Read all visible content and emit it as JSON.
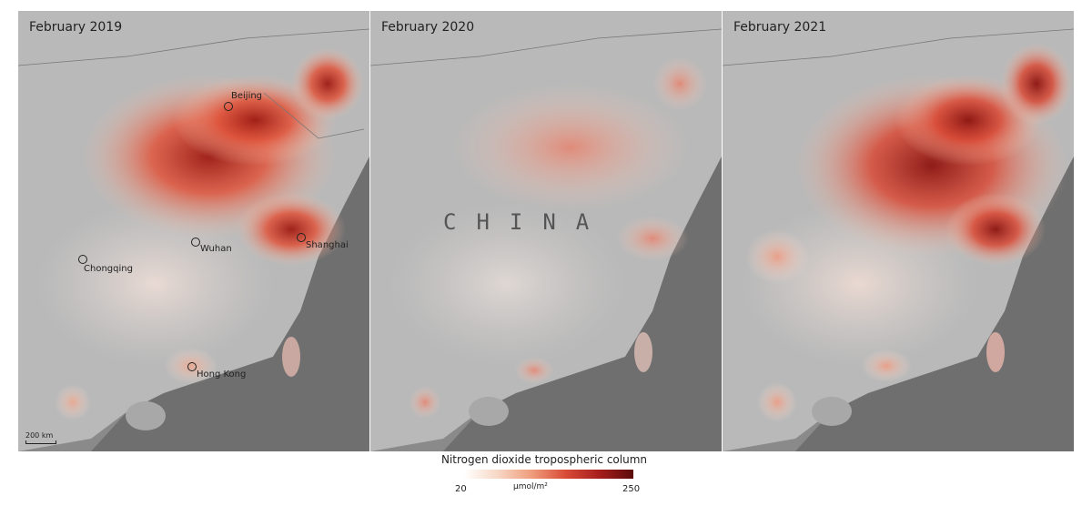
{
  "panels": [
    {
      "title": "February 2019",
      "level": "high"
    },
    {
      "title": "February 2020",
      "level": "low"
    },
    {
      "title": "February 2021",
      "level": "high"
    }
  ],
  "cities": {
    "beijing": "Beijing",
    "wuhan": "Wuhan",
    "shanghai": "Shanghai",
    "chongqing": "Chongqing",
    "hong_kong": "Hong Kong"
  },
  "country_label": "CHINA",
  "scale_bar": "200 km",
  "legend": {
    "title": "Nitrogen dioxide tropospheric column",
    "min": "20",
    "max": "250",
    "unit": "µmol/m²",
    "colors": [
      "#ffffff",
      "#f7d7c4",
      "#ef9c7c",
      "#d94b37",
      "#a61d1d",
      "#5c0b0b"
    ]
  }
}
